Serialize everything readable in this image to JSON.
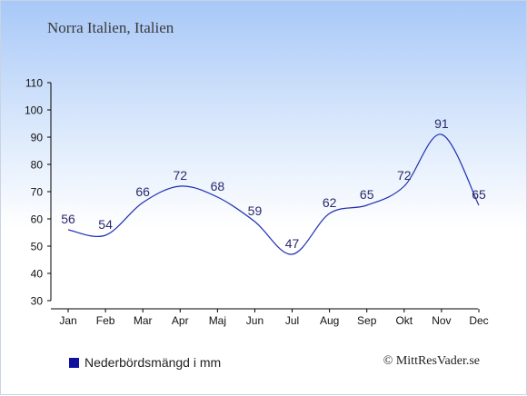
{
  "title": "Norra Italien, Italien",
  "chart_data": {
    "type": "line",
    "categories": [
      "Jan",
      "Feb",
      "Mar",
      "Apr",
      "Maj",
      "Jun",
      "Jul",
      "Aug",
      "Sep",
      "Okt",
      "Nov",
      "Dec"
    ],
    "series": [
      {
        "name": "Nederbördsmängd i mm",
        "values": [
          56,
          54,
          66,
          72,
          68,
          59,
          47,
          62,
          65,
          72,
          91,
          65
        ]
      }
    ],
    "ylim": [
      30,
      110
    ],
    "yticks": [
      30,
      40,
      50,
      60,
      70,
      80,
      90,
      100,
      110
    ],
    "data_labels": true,
    "grid": false,
    "legend_position": "bottom-left",
    "line_color": "#1f2fb0"
  },
  "legend": {
    "label": "Nederbördsmängd i mm",
    "color": "#1010a0"
  },
  "credit": "© MittResVader.se"
}
